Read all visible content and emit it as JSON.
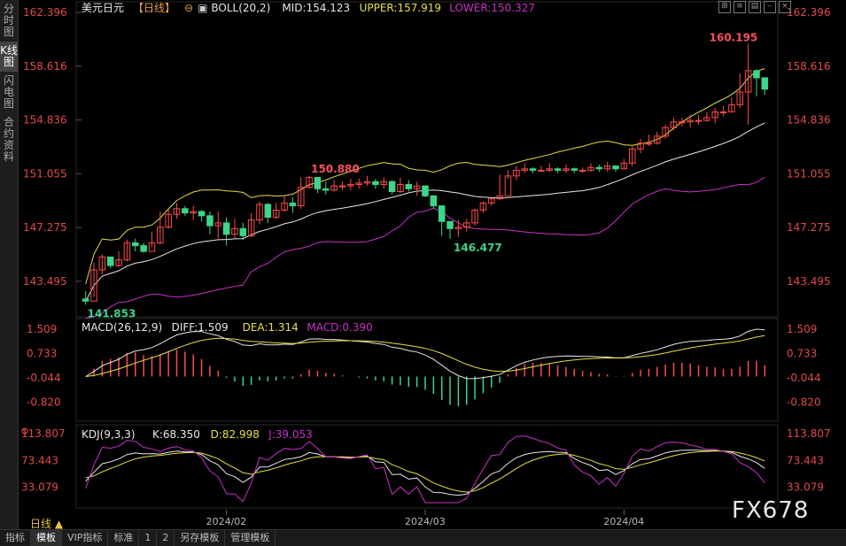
{
  "side_tabs": [
    "分时图",
    "K线图",
    "闪电图",
    "合约资料"
  ],
  "header": {
    "symbol": "美元日元",
    "period_tag": "【日线】",
    "boll_name": "BOLL(20,2)",
    "mid": "MID:154.123",
    "upper": "UPPER:157.919",
    "lower": "LOWER:150.327"
  },
  "macd_header": {
    "name": "MACD(26,12,9)",
    "diff": "DIFF:1.509",
    "dea": "DEA:1.314",
    "macd": "MACD:0.390"
  },
  "kdj_header": {
    "name": "KDJ(9,3,3)",
    "k": "K:68.350",
    "d": "D:82.998",
    "j": "J:39.053"
  },
  "price_labels": [
    "162.396",
    "158.616",
    "154.836",
    "151.055",
    "147.275",
    "143.495"
  ],
  "macd_labels": [
    "1.509",
    "0.733",
    "-0.044",
    "-0.820"
  ],
  "kdj_labels": [
    "113.807",
    "73.443",
    "33.079"
  ],
  "date_labels": [
    "2024/02",
    "2024/03",
    "2024/04"
  ],
  "period_label": "日线 ▲",
  "bottom_tabs": [
    "指标",
    "模板",
    "VIP指标",
    "标准",
    "1",
    "2",
    "另存模板",
    "管理模板"
  ],
  "watermark": "FX678",
  "colors": {
    "up": "#ff4a4a",
    "down": "#3cd58a",
    "mid": "#e8e8e8",
    "upper": "#e5e044",
    "lower": "#c832c8",
    "axis": "#e04a4a"
  },
  "chart_data": {
    "type": "candlestick",
    "title": "美元日元【日线】",
    "price_range": [
      141.0,
      162.396
    ],
    "closes": [
      142.1,
      144.3,
      145.2,
      144.6,
      145.0,
      146.2,
      146.0,
      145.6,
      146.2,
      147.3,
      148.2,
      148.6,
      148.3,
      148.4,
      148.1,
      147.4,
      147.6,
      146.8,
      147.2,
      146.7,
      147.8,
      148.9,
      148.0,
      148.5,
      149.0,
      148.8,
      150.1,
      150.8,
      150.0,
      149.9,
      150.2,
      150.2,
      150.3,
      150.4,
      150.5,
      150.3,
      150.5,
      149.8,
      150.3,
      150.0,
      150.2,
      149.5,
      148.8,
      147.7,
      147.2,
      147.3,
      147.6,
      148.5,
      149.0,
      149.3,
      149.5,
      150.9,
      151.3,
      151.4,
      151.3,
      151.3,
      151.4,
      151.3,
      151.4,
      151.3,
      151.3,
      151.5,
      151.4,
      151.6,
      151.4,
      151.8,
      152.8,
      153.2,
      153.2,
      153.7,
      154.3,
      154.7,
      154.7,
      154.8,
      154.8,
      155.0,
      155.4,
      155.4,
      155.9,
      156.8,
      158.3,
      157.8,
      157.0
    ],
    "highs": [
      142.8,
      144.8,
      145.4,
      145.2,
      145.6,
      146.4,
      146.5,
      146.2,
      147.0,
      148.4,
      148.6,
      149.0,
      148.8,
      148.8,
      148.5,
      148.4,
      148.4,
      148.0,
      147.9,
      147.6,
      148.3,
      149.1,
      149.0,
      149.0,
      149.5,
      149.4,
      150.8,
      150.9,
      150.6,
      150.5,
      150.6,
      150.5,
      150.7,
      150.7,
      150.9,
      150.7,
      150.8,
      150.6,
      150.8,
      150.6,
      150.5,
      150.2,
      149.5,
      148.6,
      147.6,
      147.8,
      147.9,
      148.6,
      149.1,
      149.4,
      151.0,
      151.3,
      151.6,
      151.8,
      151.5,
      151.6,
      151.8,
      151.5,
      151.7,
      151.5,
      151.5,
      151.8,
      151.7,
      151.9,
      151.6,
      152.1,
      153.0,
      153.5,
      153.8,
      154.0,
      154.5,
      155.0,
      155.0,
      155.2,
      155.2,
      155.4,
      155.7,
      155.8,
      156.4,
      158.1,
      160.195,
      158.4,
      157.4
    ],
    "lows": [
      141.853,
      142.4,
      144.0,
      144.4,
      144.5,
      144.9,
      145.6,
      145.5,
      145.9,
      146.1,
      147.2,
      147.9,
      148.1,
      147.8,
      147.7,
      146.8,
      146.5,
      146.0,
      146.5,
      146.4,
      146.6,
      147.5,
      147.6,
      147.9,
      148.4,
      148.3,
      148.6,
      150.0,
      149.7,
      149.6,
      149.8,
      149.9,
      149.9,
      150.0,
      150.2,
      150.0,
      150.0,
      149.6,
      149.7,
      149.8,
      149.5,
      149.4,
      148.6,
      146.7,
      146.477,
      146.6,
      147.0,
      147.4,
      148.3,
      148.8,
      149.2,
      150.7,
      150.6,
      151.1,
      151.1,
      151.2,
      151.2,
      151.1,
      151.1,
      151.1,
      151.1,
      151.2,
      151.2,
      151.2,
      151.2,
      151.4,
      151.6,
      152.5,
      153.0,
      153.1,
      153.5,
      154.1,
      154.4,
      154.3,
      154.5,
      154.7,
      154.6,
      155.1,
      155.4,
      155.7,
      154.5,
      156.5,
      156.6
    ],
    "high_label": "160.195",
    "low_labels": [
      "141.853",
      "146.477"
    ],
    "mark_label": "150.880",
    "boll": {
      "mid": 154.123,
      "upper": 157.919,
      "lower": 150.327
    },
    "macd": {
      "diff": 1.509,
      "dea": 1.314,
      "macd": 0.39,
      "range": [
        -1.2,
        1.509
      ]
    },
    "kdj": {
      "k": 68.35,
      "d": 82.998,
      "j": 39.053,
      "range": [
        10,
        113.807
      ]
    },
    "x_labels": [
      "2024/02",
      "2024/03",
      "2024/04"
    ]
  }
}
